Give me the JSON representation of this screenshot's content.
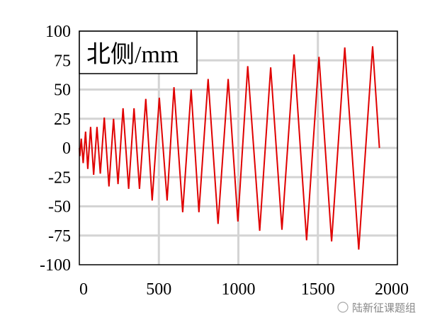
{
  "chart_data": {
    "type": "line",
    "title": "北侧/mm",
    "xlabel": "",
    "ylabel": "",
    "xlim": [
      0,
      2000
    ],
    "ylim": [
      -100,
      100
    ],
    "xticks": [
      0,
      500,
      1000,
      1500,
      2000
    ],
    "yticks": [
      100,
      75,
      50,
      25,
      0,
      -25,
      -50,
      -75,
      -100
    ],
    "grid": true,
    "line_color": "#e00000",
    "series": [
      {
        "name": "北侧",
        "x": [
          0,
          3,
          12,
          24,
          39,
          53,
          71,
          90,
          111,
          132,
          157,
          186,
          215,
          243,
          275,
          310,
          344,
          378,
          418,
          458,
          503,
          552,
          595,
          650,
          703,
          752,
          810,
          872,
          936,
          997,
          1059,
          1134,
          1203,
          1274,
          1350,
          1429,
          1507,
          1586,
          1669,
          1757,
          1844,
          1887
        ],
        "y": [
          0,
          -7,
          8,
          -13,
          14,
          -18,
          18,
          -23,
          18,
          -22,
          26,
          -33,
          25,
          -31,
          34,
          -35,
          34,
          -35,
          42,
          -45,
          43,
          -45,
          52,
          -55,
          50,
          -55,
          59,
          -65,
          59,
          -63,
          70,
          -71,
          69,
          -70,
          80,
          -79,
          78,
          -80,
          86,
          -87,
          87,
          0
        ]
      }
    ]
  },
  "watermark": "陆新征课题组"
}
